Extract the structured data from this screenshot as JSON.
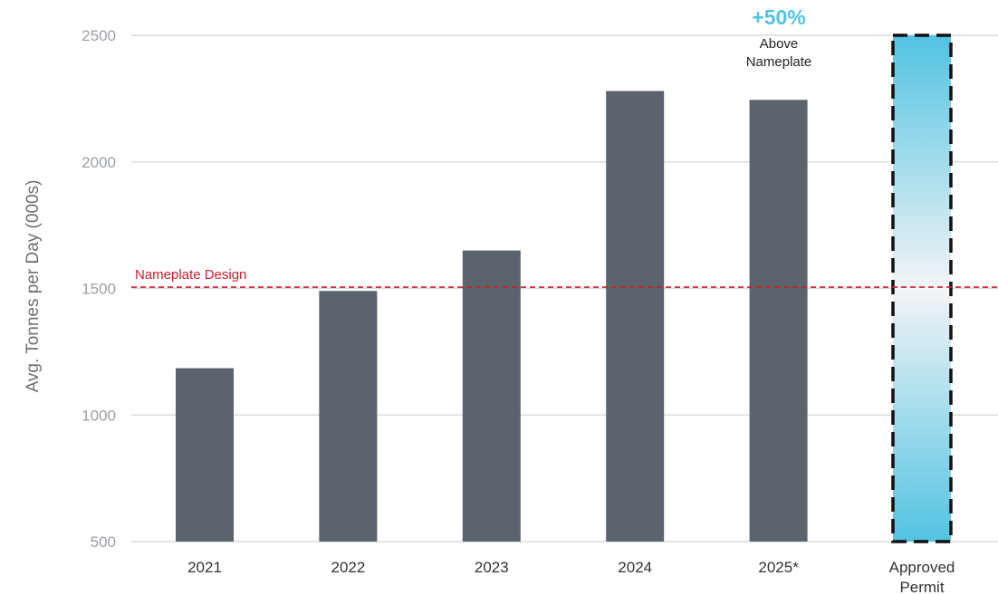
{
  "chart_data": {
    "type": "bar",
    "title": "",
    "xlabel": "",
    "ylabel": "Avg. Tonnes per Day (000s)",
    "ylim": [
      500,
      2500
    ],
    "yticks": [
      500,
      1000,
      1500,
      2000,
      2500
    ],
    "grid": true,
    "categories": [
      "2021",
      "2022",
      "2023",
      "2024",
      "2025*",
      "Approved Permit"
    ],
    "category_lines": [
      [
        "2021"
      ],
      [
        "2022"
      ],
      [
        "2023"
      ],
      [
        "2024"
      ],
      [
        "2025*"
      ],
      [
        "Approved",
        "Permit"
      ]
    ],
    "values": [
      1185,
      1490,
      1650,
      2280,
      2245,
      2500
    ],
    "permit_index": 5,
    "reference_line": {
      "label": "Nameplate Design",
      "value": 1505
    },
    "callout": {
      "headline": "+50%",
      "line1": "Above",
      "line2": "Nameplate"
    },
    "colors": {
      "bar": "#5b636c",
      "grid": "#d9dcdf",
      "tick_text": "#9aa0a6",
      "reference": "#c8202f",
      "permit_top": "#52c3e2",
      "permit_mid": "#f3f4f6",
      "accent": "#52c3e2",
      "callout_text": "#222222",
      "axis_label": "#6b7076",
      "x_tick_text": "#333333"
    }
  }
}
